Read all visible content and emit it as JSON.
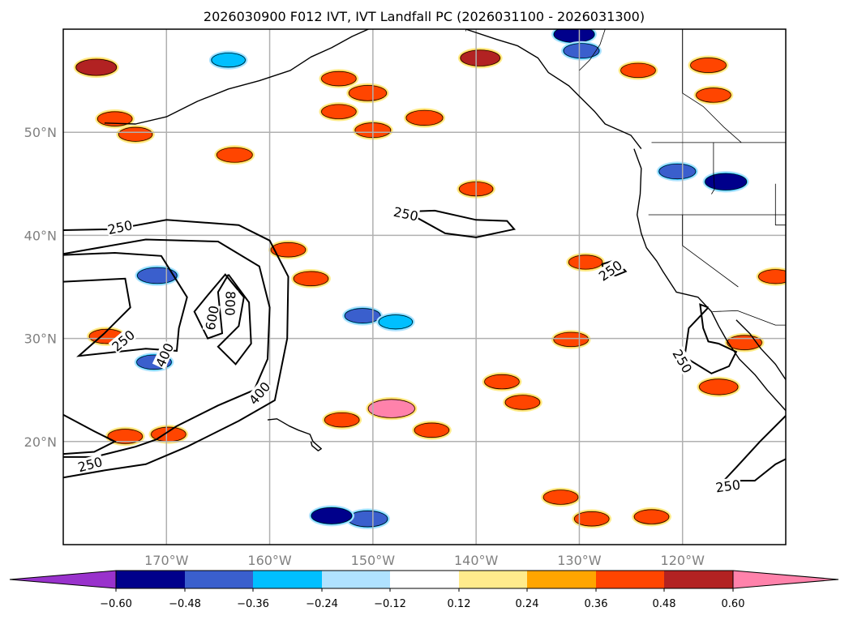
{
  "title": "2026030900 F012 IVT, IVT Landfall PC (2026031100 - 2026031300)",
  "map": {
    "projection": "PlateCarree",
    "extent": {
      "lon_min": -180,
      "lon_max": -110,
      "lat_min": 10,
      "lat_max": 60
    },
    "lat_ticks": [
      {
        "value": 50,
        "label": "50°N"
      },
      {
        "value": 40,
        "label": "40°N"
      },
      {
        "value": 30,
        "label": "30°N"
      },
      {
        "value": 20,
        "label": "20°N"
      }
    ],
    "lon_ticks": [
      {
        "value": -170,
        "label": "170°W"
      },
      {
        "value": -160,
        "label": "160°W"
      },
      {
        "value": -150,
        "label": "150°W"
      },
      {
        "value": -140,
        "label": "140°W"
      },
      {
        "value": -130,
        "label": "130°W"
      },
      {
        "value": -120,
        "label": "120°W"
      }
    ],
    "gridline_color": "#b0b0b0",
    "ivt_contour_levels": [
      250,
      400,
      600,
      800
    ],
    "ivt_contour_labels": [
      {
        "text": "250",
        "lon": -174.5,
        "lat": 40.8,
        "rot": -12
      },
      {
        "text": "250",
        "lon": -174.2,
        "lat": 29.8,
        "rot": -40
      },
      {
        "text": "250",
        "lon": -177.4,
        "lat": 17.8,
        "rot": -15
      },
      {
        "text": "400",
        "lon": -170.2,
        "lat": 28.4,
        "rot": -65
      },
      {
        "text": "600",
        "lon": -165.6,
        "lat": 32.0,
        "rot": -80
      },
      {
        "text": "800",
        "lon": -163.8,
        "lat": 33.4,
        "rot": 92
      },
      {
        "text": "400",
        "lon": -161.0,
        "lat": 24.7,
        "rot": -50
      },
      {
        "text": "250",
        "lon": -146.8,
        "lat": 42.1,
        "rot": 12
      },
      {
        "text": "250",
        "lon": -127.0,
        "lat": 36.6,
        "rot": -35
      },
      {
        "text": "250",
        "lon": -120.0,
        "lat": 27.8,
        "rot": 60
      },
      {
        "text": "250",
        "lon": -115.6,
        "lat": 15.7,
        "rot": -8
      }
    ]
  },
  "colorbar": {
    "label_values": [
      "−0.60",
      "−0.48",
      "−0.36",
      "−0.24",
      "−0.12",
      "0.12",
      "0.24",
      "0.36",
      "0.48",
      "0.60"
    ],
    "colors": [
      "#9932cc",
      "#00008b",
      "#3a5fcd",
      "#00bfff",
      "#b0e2ff",
      "#ffffff",
      "#ffeb8c",
      "#ffa500",
      "#ff4500",
      "#b22222",
      "#ff82ab"
    ],
    "extend": "both"
  },
  "chart_data": {
    "type": "heatmap",
    "title": "2026030900 F012 IVT, IVT Landfall PC (2026031100 - 2026031300)",
    "xlabel": "",
    "ylabel": "",
    "xlim": [
      -180,
      -110
    ],
    "ylim": [
      10,
      60
    ],
    "x_ticks": [
      "170°W",
      "160°W",
      "150°W",
      "140°W",
      "130°W",
      "120°W"
    ],
    "y_ticks": [
      "50°N",
      "40°N",
      "30°N",
      "20°N"
    ],
    "grid": true,
    "fill_levels": [
      -0.6,
      -0.48,
      -0.36,
      -0.24,
      -0.12,
      0.12,
      0.24,
      0.36,
      0.48,
      0.6
    ],
    "contour_levels": [
      250,
      400,
      600,
      800
    ],
    "legend": "bottom colorbar",
    "blobs": [
      {
        "lon": -176.8,
        "lat": 56.3,
        "v": 0.5
      },
      {
        "lon": -175.0,
        "lat": 51.3,
        "v": 0.38
      },
      {
        "lon": -173.0,
        "lat": 49.8,
        "v": 0.36
      },
      {
        "lon": -163.4,
        "lat": 47.8,
        "v": 0.4
      },
      {
        "lon": -164.0,
        "lat": 57.0,
        "v": -0.36
      },
      {
        "lon": -153.3,
        "lat": 55.2,
        "v": 0.38
      },
      {
        "lon": -153.3,
        "lat": 52.0,
        "v": 0.38
      },
      {
        "lon": -150.5,
        "lat": 53.8,
        "v": 0.44
      },
      {
        "lon": -150.0,
        "lat": 50.2,
        "v": 0.4
      },
      {
        "lon": -145.0,
        "lat": 51.4,
        "v": 0.42
      },
      {
        "lon": -139.6,
        "lat": 57.2,
        "v": 0.48
      },
      {
        "lon": -130.5,
        "lat": 59.5,
        "v": -0.5
      },
      {
        "lon": -129.8,
        "lat": 57.9,
        "v": -0.4
      },
      {
        "lon": -124.3,
        "lat": 56.0,
        "v": 0.38
      },
      {
        "lon": -117.5,
        "lat": 56.5,
        "v": 0.4
      },
      {
        "lon": -117.0,
        "lat": 53.6,
        "v": 0.38
      },
      {
        "lon": -120.5,
        "lat": 46.2,
        "v": -0.42
      },
      {
        "lon": -115.8,
        "lat": 45.2,
        "v": -0.52
      },
      {
        "lon": -158.2,
        "lat": 38.6,
        "v": 0.38
      },
      {
        "lon": -140.0,
        "lat": 44.5,
        "v": 0.36
      },
      {
        "lon": -170.9,
        "lat": 36.1,
        "v": -0.48
      },
      {
        "lon": -175.8,
        "lat": 30.2,
        "v": 0.38
      },
      {
        "lon": -171.2,
        "lat": 27.7,
        "v": -0.38
      },
      {
        "lon": -174.0,
        "lat": 20.5,
        "v": 0.38
      },
      {
        "lon": -169.8,
        "lat": 20.7,
        "v": 0.38
      },
      {
        "lon": -156.0,
        "lat": 35.8,
        "v": 0.38
      },
      {
        "lon": -151.0,
        "lat": 32.2,
        "v": -0.4
      },
      {
        "lon": -147.8,
        "lat": 31.6,
        "v": -0.36
      },
      {
        "lon": -137.5,
        "lat": 25.8,
        "v": 0.38
      },
      {
        "lon": -135.5,
        "lat": 23.8,
        "v": 0.38
      },
      {
        "lon": -148.2,
        "lat": 23.2,
        "v": 0.62
      },
      {
        "lon": -153.0,
        "lat": 22.1,
        "v": 0.38
      },
      {
        "lon": -144.3,
        "lat": 21.1,
        "v": 0.38
      },
      {
        "lon": -150.5,
        "lat": 12.5,
        "v": -0.48
      },
      {
        "lon": -154.0,
        "lat": 12.8,
        "v": -0.5
      },
      {
        "lon": -131.8,
        "lat": 14.6,
        "v": 0.38
      },
      {
        "lon": -128.8,
        "lat": 12.5,
        "v": 0.38
      },
      {
        "lon": -123.0,
        "lat": 12.7,
        "v": 0.38
      },
      {
        "lon": -116.5,
        "lat": 25.3,
        "v": 0.46
      },
      {
        "lon": -114.0,
        "lat": 29.6,
        "v": 0.38
      },
      {
        "lon": -130.8,
        "lat": 29.9,
        "v": 0.38
      },
      {
        "lon": -111.0,
        "lat": 36.0,
        "v": 0.36
      },
      {
        "lon": -129.4,
        "lat": 37.4,
        "v": 0.36
      }
    ]
  }
}
